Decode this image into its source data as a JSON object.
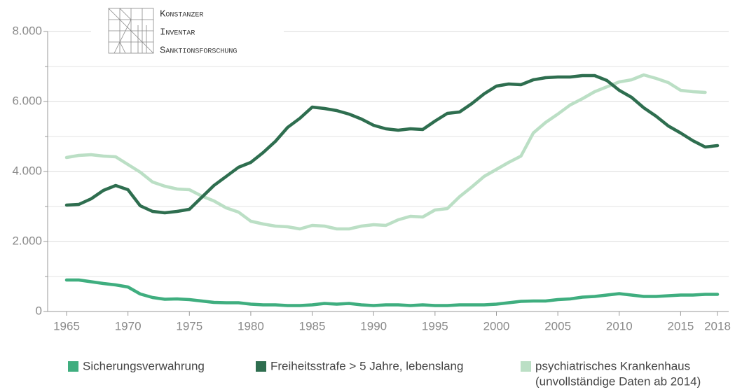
{
  "chart_data": {
    "type": "line",
    "logo": [
      "Konstanzer",
      "Inventar",
      "Sanktionsforschung"
    ],
    "x": [
      1965,
      1966,
      1967,
      1968,
      1969,
      1970,
      1971,
      1972,
      1973,
      1974,
      1975,
      1976,
      1977,
      1978,
      1979,
      1980,
      1981,
      1982,
      1983,
      1984,
      1985,
      1986,
      1987,
      1988,
      1989,
      1990,
      1991,
      1992,
      1993,
      1994,
      1995,
      1996,
      1997,
      1998,
      1999,
      2000,
      2001,
      2002,
      2003,
      2004,
      2005,
      2006,
      2007,
      2008,
      2009,
      2010,
      2011,
      2012,
      2013,
      2014,
      2015,
      2016,
      2017,
      2018
    ],
    "xlim": [
      1965,
      2018
    ],
    "xticks": [
      1965,
      1970,
      1975,
      1980,
      1985,
      1990,
      1995,
      2000,
      2005,
      2010,
      2015,
      2018
    ],
    "ylim": [
      0,
      8000
    ],
    "yticks": [
      0,
      {
        "value": 2000,
        "label": "2.000"
      },
      {
        "value": 4000,
        "label": "4.000"
      },
      {
        "value": 6000,
        "label": "6.000"
      },
      {
        "value": 8000,
        "label": "8.000"
      }
    ],
    "yminorticks": [
      1000,
      3000,
      5000,
      7000
    ],
    "grid": true,
    "series": [
      {
        "name": "Sicherungsverwahrung",
        "color": "#3fae7f",
        "values": [
          900,
          900,
          850,
          800,
          760,
          700,
          500,
          400,
          350,
          360,
          340,
          300,
          260,
          250,
          250,
          210,
          190,
          190,
          170,
          170,
          190,
          230,
          210,
          230,
          190,
          170,
          190,
          190,
          170,
          190,
          170,
          170,
          190,
          190,
          190,
          210,
          250,
          290,
          300,
          300,
          340,
          360,
          410,
          430,
          470,
          510,
          470,
          430,
          430,
          450,
          470,
          470,
          490,
          490
        ]
      },
      {
        "name": "Freiheitsstrafe > 5 Jahre, lebenslang",
        "color": "#2e6e4f",
        "values": [
          3040,
          3060,
          3220,
          3460,
          3600,
          3480,
          3020,
          2860,
          2820,
          2860,
          2920,
          3260,
          3600,
          3860,
          4120,
          4260,
          4540,
          4860,
          5260,
          5520,
          5840,
          5800,
          5740,
          5640,
          5500,
          5320,
          5220,
          5180,
          5220,
          5200,
          5440,
          5660,
          5700,
          5940,
          6220,
          6440,
          6500,
          6480,
          6620,
          6680,
          6700,
          6700,
          6740,
          6740,
          6600,
          6320,
          6120,
          5820,
          5580,
          5300,
          5100,
          4880,
          4700,
          4740
        ]
      },
      {
        "name": "psychiatrisches Krankenhaus",
        "note": "(unvollständige Daten ab 2014)",
        "color": "#bbdfc5",
        "values": [
          4400,
          4460,
          4480,
          4440,
          4420,
          4200,
          3980,
          3700,
          3580,
          3500,
          3480,
          3300,
          3160,
          2960,
          2840,
          2580,
          2500,
          2440,
          2420,
          2360,
          2460,
          2440,
          2360,
          2360,
          2440,
          2480,
          2460,
          2620,
          2720,
          2700,
          2900,
          2940,
          3280,
          3560,
          3860,
          4060,
          4260,
          4440,
          5100,
          5400,
          5640,
          5900,
          6080,
          6280,
          6420,
          6560,
          6620,
          6760,
          6660,
          6540,
          6320,
          6280,
          6260,
          null
        ]
      }
    ]
  }
}
